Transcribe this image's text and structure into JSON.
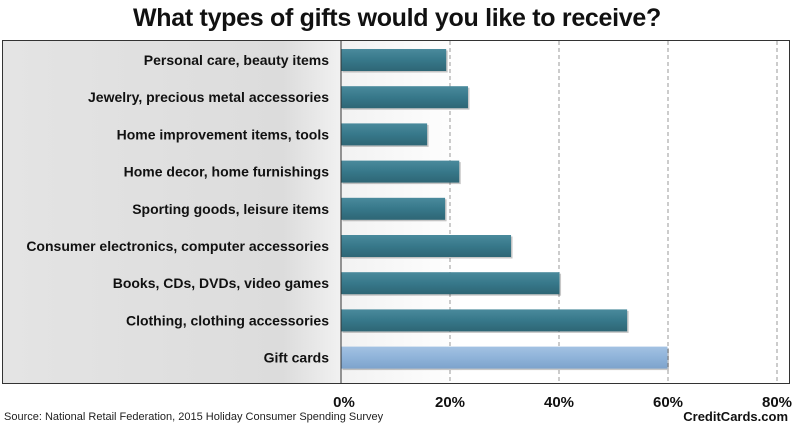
{
  "chart_data": {
    "type": "bar",
    "orientation": "horizontal",
    "title": "What types of gifts would you like to receive?",
    "categories": [
      "Personal care, beauty items",
      "Jewelry, precious metal accessories",
      "Home improvement items, tools",
      "Home decor, home furnishings",
      "Sporting goods, leisure items",
      "Consumer electronics, computer accessories",
      "Books, CDs, DVDs, video games",
      "Clothing, clothing accessories",
      "Gift cards"
    ],
    "values": [
      19.3,
      23.3,
      15.8,
      21.7,
      19.1,
      31.2,
      40.1,
      52.5,
      59.9
    ],
    "unit": "%",
    "xlim": [
      0,
      80
    ],
    "ticks": [
      "0%",
      "20%",
      "40%",
      "60%",
      "80%"
    ],
    "tick_values": [
      0,
      20,
      40,
      60,
      80
    ],
    "grid": "vertical dashed",
    "colors": {
      "bar": "#37788a",
      "highlight_bar": "#8fb3d9",
      "grid": "#999999"
    },
    "highlight_index": 8
  },
  "footer": {
    "source": "Source: National Retail Federation, 2015 Holiday Consumer Spending Survey",
    "brand": "CreditCards.com"
  }
}
